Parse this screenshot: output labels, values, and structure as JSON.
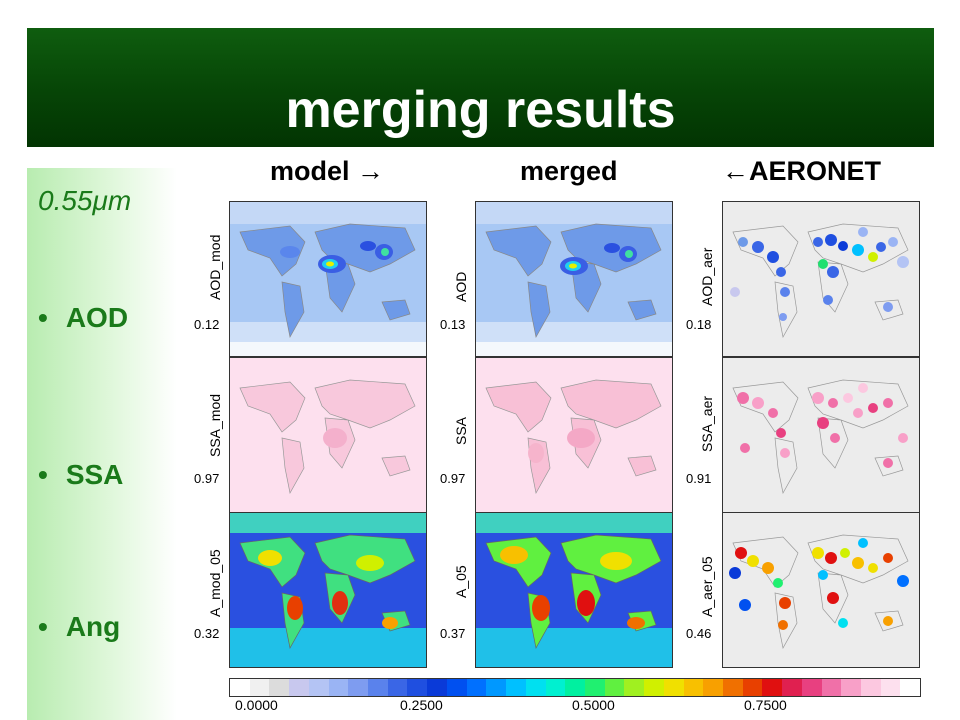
{
  "slide": {
    "title": "merging results",
    "wavelength": "0.55μm",
    "bullets": [
      "AOD",
      "SSA",
      "Ang"
    ]
  },
  "columns": [
    {
      "label": "model →"
    },
    {
      "label": "merged"
    },
    {
      "label": "←AERONET"
    }
  ],
  "panels": {
    "row1": [
      {
        "var": "AOD_mod",
        "value": "0.12"
      },
      {
        "var": "AOD",
        "value": "0.13"
      },
      {
        "var": "AOD_aer",
        "value": "0.18"
      }
    ],
    "row2": [
      {
        "var": "SSA_mod",
        "value": "0.97"
      },
      {
        "var": "SSA",
        "value": "0.97"
      },
      {
        "var": "SSA_aer",
        "value": "0.91"
      }
    ],
    "row3": [
      {
        "var": "A_mod_05",
        "value": "0.32"
      },
      {
        "var": "A_05",
        "value": "0.37"
      },
      {
        "var": "A_aer_05",
        "value": "0.46"
      }
    ]
  },
  "colorbar": {
    "ticks": [
      "0.0000",
      "0.2500",
      "0.5000",
      "0.7500"
    ],
    "colors": [
      "#ffffff",
      "#f0f0f0",
      "#dcdcdc",
      "#c8c8ee",
      "#b4c4f4",
      "#9ab4f4",
      "#7e9cf0",
      "#5a82ec",
      "#3a66e6",
      "#1f4fe0",
      "#0a3ad8",
      "#0050f0",
      "#0070ff",
      "#0098ff",
      "#00c0ff",
      "#00e0f0",
      "#00f0d0",
      "#00f0a0",
      "#20f070",
      "#60f040",
      "#a0f020",
      "#d0f000",
      "#f0e000",
      "#f8c000",
      "#f8a000",
      "#f07000",
      "#e84000",
      "#e01010",
      "#e02050",
      "#e84080",
      "#f070a8",
      "#f8a0c8",
      "#fcc8e0",
      "#fde0ee",
      "#ffffff"
    ]
  }
}
